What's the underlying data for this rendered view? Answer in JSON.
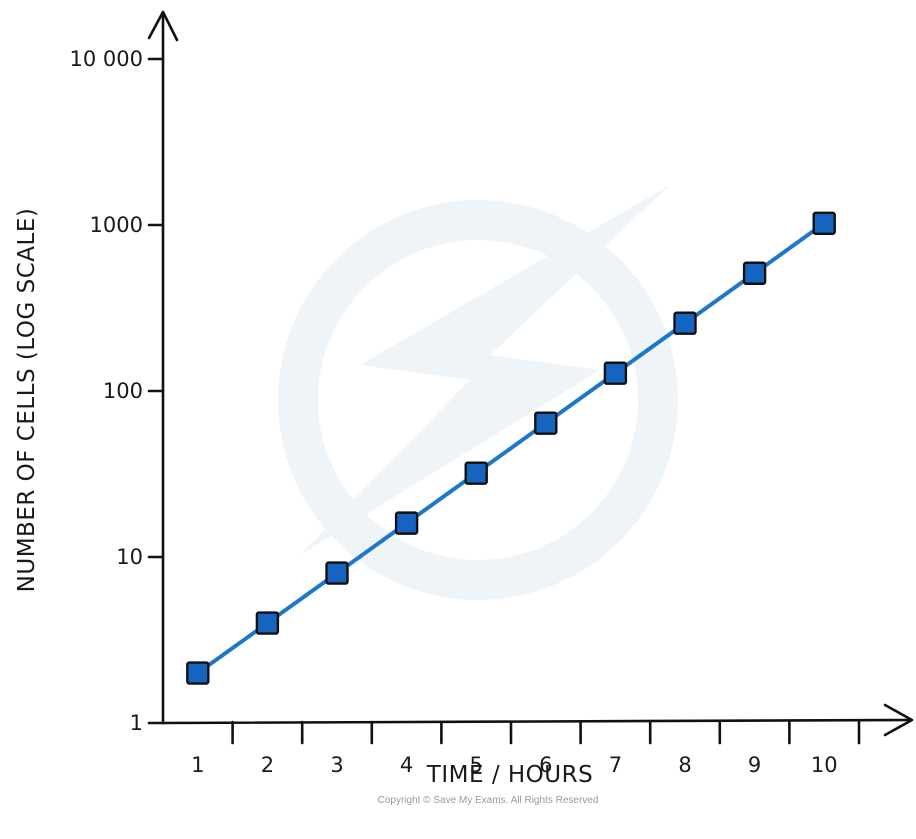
{
  "chart_data": {
    "type": "line",
    "xlabel": "TIME / HOURS",
    "ylabel": "NUMBER OF CELLS (LOG SCALE)",
    "y_scale": "log",
    "xlim": [
      0.5,
      10.5
    ],
    "ylim": [
      1,
      10000
    ],
    "x_ticks": [
      "1",
      "2",
      "3",
      "4",
      "5",
      "6",
      "7",
      "8",
      "9",
      "10"
    ],
    "y_ticks": [
      {
        "value": 1,
        "label": "1"
      },
      {
        "value": 10,
        "label": "10"
      },
      {
        "value": 100,
        "label": "100"
      },
      {
        "value": 1000,
        "label": "1000"
      },
      {
        "value": 10000,
        "label": "10 000"
      }
    ],
    "series": [
      {
        "x": [
          1,
          2,
          3,
          4,
          5,
          6,
          7,
          8,
          9,
          10
        ],
        "values": [
          2,
          4,
          8,
          16,
          32,
          64,
          128,
          256,
          512,
          1024
        ],
        "line_color": "#1f77c7",
        "marker": "square",
        "marker_fill": "#1565c0",
        "marker_edge": "#111111"
      }
    ],
    "grid": false,
    "legend": "none"
  },
  "footer": {
    "copyright": "Copyright © Save My Exams. All Rights Reserved"
  }
}
